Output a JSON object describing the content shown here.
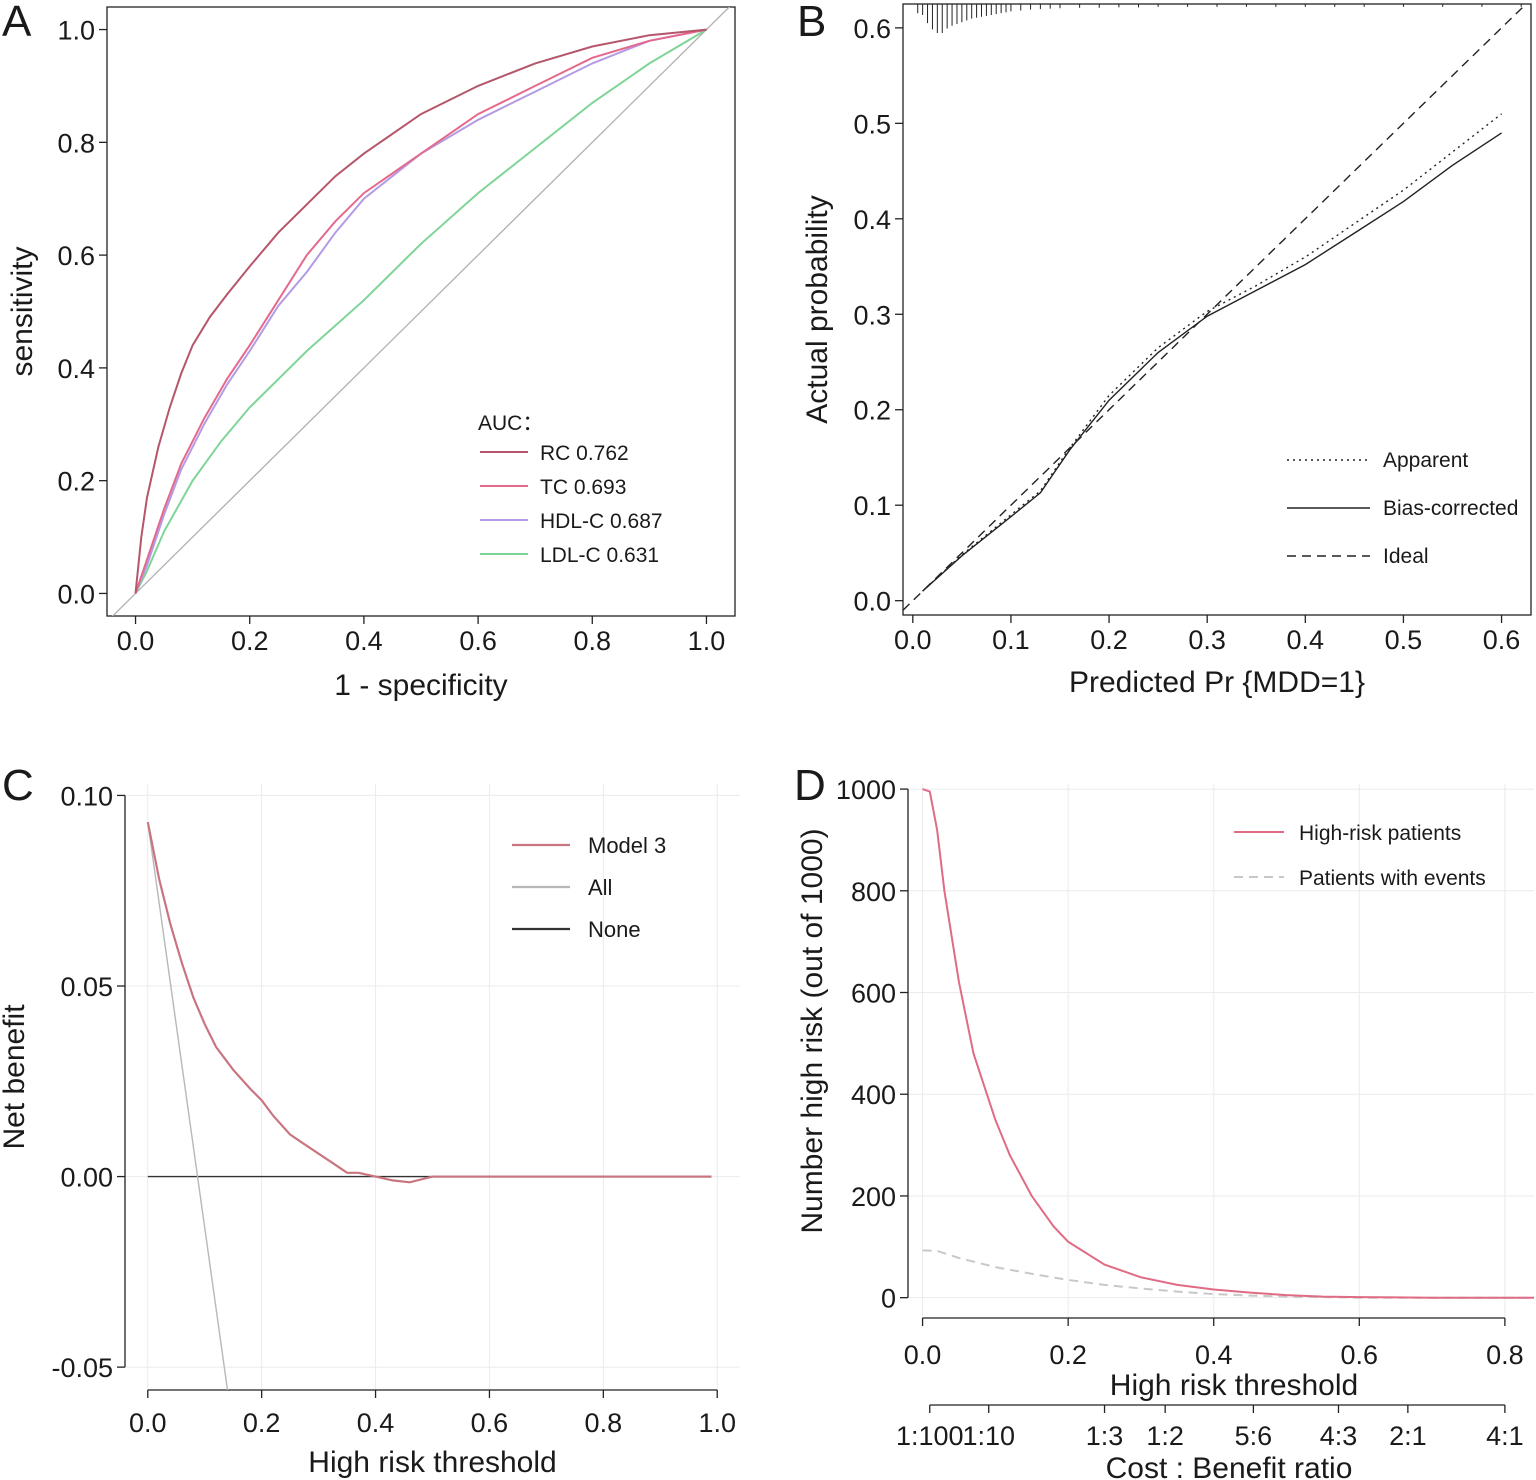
{
  "panels": {
    "A": {
      "letter": "A"
    },
    "B": {
      "letter": "B"
    },
    "C": {
      "letter": "C"
    },
    "D": {
      "letter": "D"
    }
  },
  "chart_data": [
    {
      "id": "A",
      "type": "line",
      "title": "",
      "xlabel": "1 - specificity",
      "ylabel": "sensitivity",
      "xlim": [
        -0.05,
        1.05
      ],
      "ylim": [
        -0.04,
        1.04
      ],
      "xticks": [
        "0.0",
        "0.2",
        "0.4",
        "0.6",
        "0.8",
        "1.0"
      ],
      "yticks": [
        "0.0",
        "0.2",
        "0.4",
        "0.6",
        "0.8",
        "1.0"
      ],
      "legend_title": "AUC：",
      "legend_position": "bottom-right",
      "reference_line": {
        "name": "chance",
        "x": [
          -0.05,
          1.05
        ],
        "y": [
          -0.05,
          1.05
        ],
        "color": "#b0b0b0"
      },
      "series": [
        {
          "name": "RC",
          "label": "RC 0.762",
          "color": "#b5566b",
          "x": [
            0,
            0.01,
            0.02,
            0.04,
            0.06,
            0.08,
            0.1,
            0.13,
            0.16,
            0.2,
            0.25,
            0.3,
            0.35,
            0.4,
            0.5,
            0.6,
            0.7,
            0.8,
            0.9,
            1.0
          ],
          "y": [
            0,
            0.1,
            0.17,
            0.26,
            0.33,
            0.39,
            0.44,
            0.49,
            0.53,
            0.58,
            0.64,
            0.69,
            0.74,
            0.78,
            0.85,
            0.9,
            0.94,
            0.97,
            0.99,
            1.0
          ]
        },
        {
          "name": "TC",
          "label": "TC 0.693",
          "color": "#e46a8d",
          "x": [
            0,
            0.02,
            0.05,
            0.08,
            0.12,
            0.16,
            0.2,
            0.25,
            0.3,
            0.35,
            0.4,
            0.5,
            0.6,
            0.7,
            0.8,
            0.9,
            1.0
          ],
          "y": [
            0,
            0.06,
            0.15,
            0.23,
            0.31,
            0.38,
            0.44,
            0.52,
            0.6,
            0.66,
            0.71,
            0.78,
            0.85,
            0.9,
            0.95,
            0.98,
            1.0
          ]
        },
        {
          "name": "HDL-C",
          "label": "HDL-C 0.687",
          "color": "#b39be6",
          "x": [
            0,
            0.02,
            0.05,
            0.08,
            0.12,
            0.16,
            0.2,
            0.25,
            0.3,
            0.35,
            0.4,
            0.5,
            0.6,
            0.7,
            0.8,
            0.9,
            1.0
          ],
          "y": [
            0,
            0.05,
            0.14,
            0.22,
            0.3,
            0.37,
            0.43,
            0.51,
            0.57,
            0.64,
            0.7,
            0.78,
            0.84,
            0.89,
            0.94,
            0.98,
            1.0
          ]
        },
        {
          "name": "LDL-C",
          "label": "LDL-C 0.631",
          "color": "#7fd497",
          "x": [
            0,
            0.02,
            0.05,
            0.1,
            0.15,
            0.2,
            0.25,
            0.3,
            0.4,
            0.5,
            0.6,
            0.7,
            0.8,
            0.9,
            1.0
          ],
          "y": [
            0,
            0.04,
            0.11,
            0.2,
            0.27,
            0.33,
            0.38,
            0.43,
            0.52,
            0.62,
            0.71,
            0.79,
            0.87,
            0.94,
            1.0
          ]
        }
      ]
    },
    {
      "id": "B",
      "type": "line",
      "title": "",
      "xlabel": "Predicted Pr {MDD=1}",
      "ylabel": "Actual probability",
      "xlim": [
        -0.01,
        0.63
      ],
      "ylim": [
        -0.015,
        0.625
      ],
      "xticks": [
        "0.0",
        "0.1",
        "0.2",
        "0.3",
        "0.4",
        "0.5",
        "0.6"
      ],
      "yticks": [
        "0.0",
        "0.1",
        "0.2",
        "0.3",
        "0.4",
        "0.5",
        "0.6"
      ],
      "legend_position": "bottom-right",
      "rug_top": [
        0.005,
        0.01,
        0.015,
        0.02,
        0.025,
        0.03,
        0.035,
        0.04,
        0.045,
        0.05,
        0.055,
        0.06,
        0.065,
        0.07,
        0.075,
        0.08,
        0.085,
        0.09,
        0.095,
        0.1,
        0.11,
        0.12,
        0.13,
        0.14,
        0.15,
        0.17,
        0.19,
        0.21,
        0.23,
        0.25,
        0.28,
        0.31,
        0.34,
        0.37,
        0.4,
        0.43,
        0.46,
        0.5,
        0.54,
        0.58,
        0.62
      ],
      "rug_lengths": [
        0.8,
        1.0,
        1.9,
        2.6,
        3.0,
        3.0,
        2.5,
        2.2,
        2.0,
        1.8,
        1.6,
        1.4,
        1.3,
        1.2,
        1.1,
        1.0,
        0.9,
        0.8,
        0.7,
        0.6,
        0.5,
        0.4,
        0.35,
        0.3,
        0.25,
        0.2,
        0.2,
        0.15,
        0.15,
        0.1,
        0.1,
        0.1,
        0.1,
        0.1,
        0.1,
        0.1,
        0.1,
        0.1,
        0.1,
        0.1,
        0.1
      ],
      "series": [
        {
          "name": "Apparent",
          "label": "Apparent",
          "style": "dotted",
          "color": "#222222",
          "x": [
            0.01,
            0.05,
            0.1,
            0.13,
            0.16,
            0.2,
            0.25,
            0.3,
            0.35,
            0.4,
            0.45,
            0.5,
            0.55,
            0.6
          ],
          "y": [
            0.01,
            0.048,
            0.09,
            0.115,
            0.16,
            0.215,
            0.265,
            0.303,
            0.33,
            0.36,
            0.395,
            0.43,
            0.47,
            0.51
          ]
        },
        {
          "name": "Bias-corrected",
          "label": "Bias-corrected",
          "style": "solid",
          "color": "#222222",
          "x": [
            0.01,
            0.05,
            0.1,
            0.13,
            0.16,
            0.2,
            0.25,
            0.3,
            0.35,
            0.4,
            0.45,
            0.5,
            0.55,
            0.6
          ],
          "y": [
            0.01,
            0.047,
            0.088,
            0.113,
            0.158,
            0.21,
            0.26,
            0.298,
            0.325,
            0.352,
            0.385,
            0.418,
            0.456,
            0.49
          ]
        },
        {
          "name": "Ideal",
          "label": "Ideal",
          "style": "dashed",
          "color": "#222222",
          "x": [
            -0.01,
            0.63
          ],
          "y": [
            -0.01,
            0.63
          ]
        }
      ]
    },
    {
      "id": "C",
      "type": "line",
      "title": "",
      "xlabel": "High risk threshold",
      "ylabel": "Net benefit",
      "xlim": [
        -0.04,
        1.04
      ],
      "ylim": [
        -0.056,
        0.103
      ],
      "xticks": [
        "0.0",
        "0.2",
        "0.4",
        "0.6",
        "0.8",
        "1.0"
      ],
      "yticks": [
        "-0.05",
        "0.00",
        "0.05",
        "0.10"
      ],
      "grid": true,
      "legend_position": "top-right",
      "series": [
        {
          "name": "Model 3",
          "label": "Model 3",
          "color": "#c97580",
          "x": [
            0,
            0.02,
            0.04,
            0.06,
            0.08,
            0.1,
            0.12,
            0.15,
            0.18,
            0.2,
            0.22,
            0.25,
            0.28,
            0.3,
            0.33,
            0.35,
            0.37,
            0.4,
            0.43,
            0.46,
            0.5,
            0.55,
            0.6,
            0.7,
            0.8,
            0.9,
            0.99
          ],
          "y": [
            0.093,
            0.078,
            0.066,
            0.056,
            0.047,
            0.04,
            0.034,
            0.028,
            0.023,
            0.02,
            0.016,
            0.011,
            0.008,
            0.006,
            0.003,
            0.001,
            0.001,
            0.0,
            -0.001,
            -0.0015,
            0.0,
            0.0,
            0.0,
            0.0,
            0.0,
            0.0,
            0.0
          ]
        },
        {
          "name": "All",
          "label": "All",
          "color": "#b8b8b8",
          "x": [
            0,
            0.14
          ],
          "y": [
            0.093,
            -0.056
          ]
        },
        {
          "name": "None",
          "label": "None",
          "color": "#333333",
          "x": [
            0,
            0.99
          ],
          "y": [
            0,
            0
          ]
        }
      ]
    },
    {
      "id": "D",
      "type": "line",
      "title": "",
      "xlabel": "High risk threshold",
      "ylabel": "Number high risk (out of 1000)",
      "secondary_xlabel": "Cost : Benefit ratio",
      "xlim": [
        -0.02,
        0.84
      ],
      "ylim": [
        -40,
        1010
      ],
      "xticks": [
        "0.0",
        "0.2",
        "0.4",
        "0.6",
        "0.8"
      ],
      "yticks": [
        "0",
        "200",
        "400",
        "600",
        "800",
        "1000"
      ],
      "cost_benefit_ticks": [
        {
          "label": "1:100",
          "threshold": 0.0099
        },
        {
          "label": "1:10",
          "threshold": 0.0909
        },
        {
          "label": "1:3",
          "threshold": 0.25
        },
        {
          "label": "1:2",
          "threshold": 0.3333
        },
        {
          "label": "5:6",
          "threshold": 0.4545
        },
        {
          "label": "4:3",
          "threshold": 0.5714
        },
        {
          "label": "2:1",
          "threshold": 0.6667
        },
        {
          "label": "4:1",
          "threshold": 0.8
        }
      ],
      "grid": true,
      "legend_position": "top-right",
      "series": [
        {
          "name": "High-risk patients",
          "label": "High-risk patients",
          "style": "solid",
          "color": "#e06b84",
          "x": [
            0,
            0.01,
            0.02,
            0.03,
            0.05,
            0.07,
            0.1,
            0.12,
            0.15,
            0.18,
            0.2,
            0.25,
            0.3,
            0.35,
            0.4,
            0.45,
            0.5,
            0.55,
            0.6,
            0.7,
            0.84
          ],
          "y": [
            1000,
            995,
            920,
            800,
            620,
            480,
            350,
            280,
            200,
            140,
            110,
            65,
            40,
            25,
            16,
            10,
            5,
            2,
            1,
            0,
            0
          ]
        },
        {
          "name": "Patients with events",
          "label": "Patients with events",
          "style": "dashed",
          "color": "#c8c8c8",
          "x": [
            0,
            0.02,
            0.05,
            0.1,
            0.15,
            0.2,
            0.25,
            0.3,
            0.35,
            0.4,
            0.45,
            0.5,
            0.55,
            0.6,
            0.7,
            0.84
          ],
          "y": [
            93,
            92,
            78,
            60,
            47,
            35,
            25,
            18,
            12,
            7,
            4,
            2,
            1,
            0,
            0,
            0
          ]
        }
      ]
    }
  ]
}
